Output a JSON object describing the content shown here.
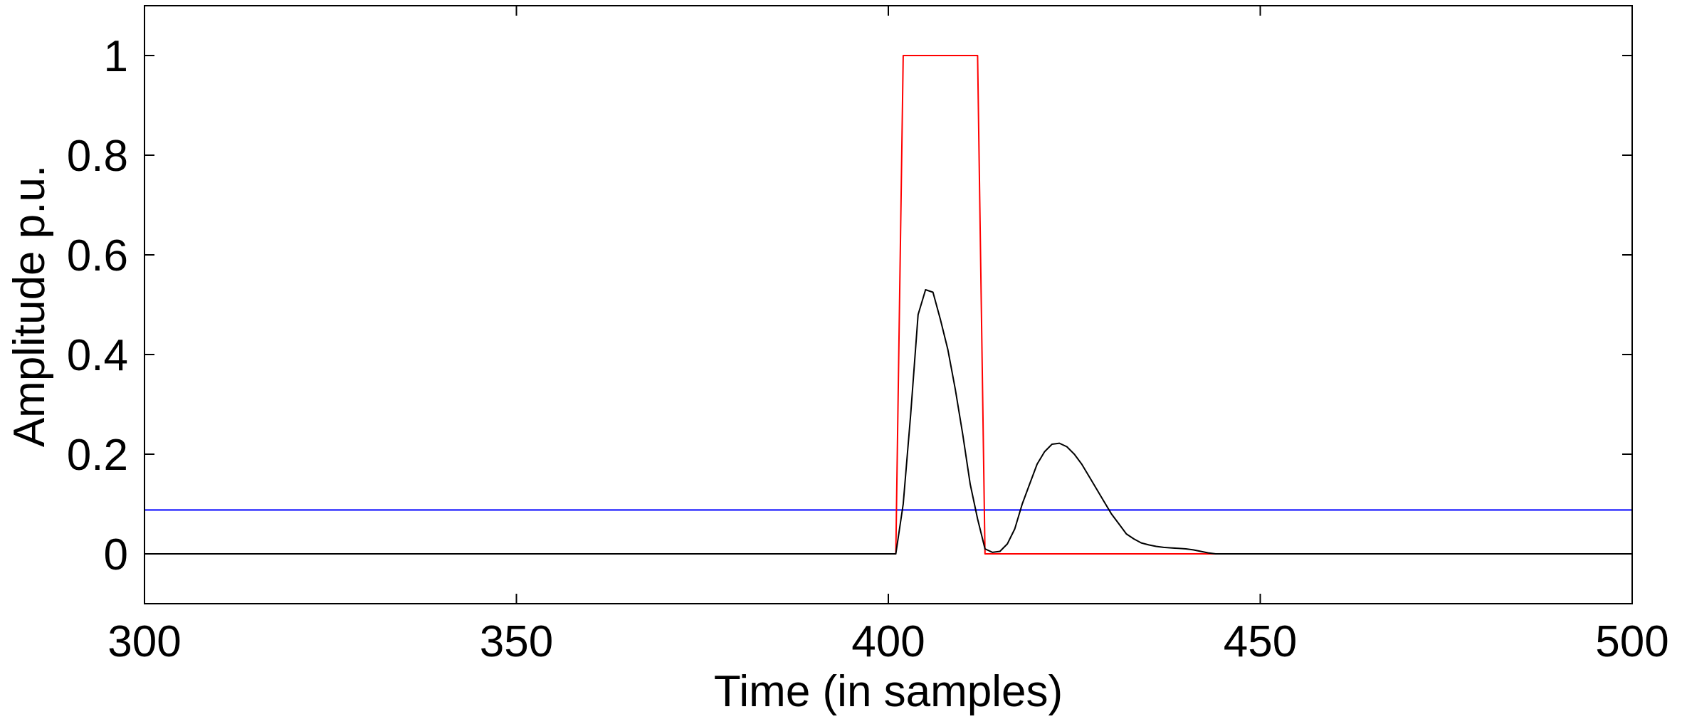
{
  "chart_data": {
    "type": "line",
    "title": "",
    "xlabel": "Time  (in samples)",
    "ylabel": "Amplitude p.u.",
    "xlim": [
      300,
      500
    ],
    "ylim": [
      -0.1,
      1.1
    ],
    "xticks": [
      300,
      350,
      400,
      450,
      500
    ],
    "yticks": [
      0,
      0.2,
      0.4,
      0.6,
      0.8,
      1
    ],
    "xtick_labels": [
      "300",
      "350",
      "400",
      "450",
      "500"
    ],
    "ytick_labels": [
      "0",
      "0.2",
      "0.4",
      "0.6",
      "0.8",
      "1"
    ],
    "grid": false,
    "legend": "none",
    "series": [
      {
        "color": "#0000ff",
        "x": [
          300,
          500
        ],
        "y": [
          0.088,
          0.088
        ]
      },
      {
        "color": "#ff0000",
        "x": [
          300,
          401,
          402,
          412,
          413,
          500
        ],
        "y": [
          0,
          0,
          1,
          1,
          0,
          0
        ]
      },
      {
        "color": "#000000",
        "x": [
          300,
          401,
          402,
          403,
          404,
          405,
          406,
          407,
          408,
          409,
          410,
          411,
          412,
          413,
          414,
          415,
          416,
          417,
          418,
          419,
          420,
          421,
          422,
          423,
          424,
          425,
          426,
          427,
          428,
          429,
          430,
          431,
          432,
          433,
          434,
          435,
          436,
          437,
          438,
          439,
          440,
          441,
          442,
          443,
          444,
          445,
          446,
          447,
          500
        ],
        "y": [
          0,
          0,
          0.1,
          0.28,
          0.48,
          0.53,
          0.525,
          0.47,
          0.41,
          0.33,
          0.24,
          0.14,
          0.07,
          0.01,
          0.003,
          0.005,
          0.02,
          0.05,
          0.1,
          0.14,
          0.18,
          0.205,
          0.22,
          0.222,
          0.215,
          0.2,
          0.18,
          0.155,
          0.13,
          0.105,
          0.08,
          0.06,
          0.04,
          0.03,
          0.022,
          0.018,
          0.015,
          0.013,
          0.012,
          0.011,
          0.01,
          0.008,
          0.005,
          0.002,
          0,
          0,
          0,
          0,
          0
        ]
      }
    ]
  }
}
